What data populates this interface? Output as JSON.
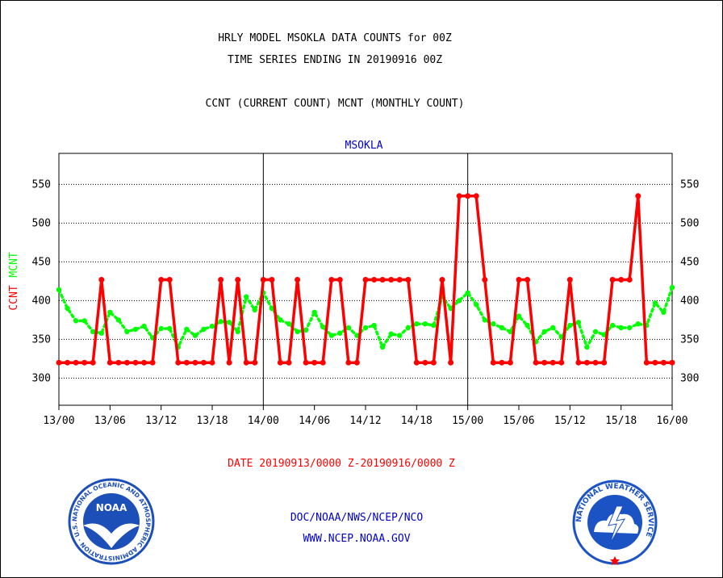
{
  "header": {
    "title_line1": "HRLY MODEL MSOKLA DATA COUNTS for 00Z",
    "title_line2": "TIME SERIES ENDING IN 20190916 00Z",
    "subtitle": "CCNT (CURRENT COUNT) MCNT (MONTHLY COUNT)",
    "panel_label": "MSOKLA"
  },
  "colors": {
    "ccnt": "#ff0000",
    "mcnt": "#00ff00",
    "panel_label": "#0000cc",
    "footer_link": "#0000cc",
    "date_range": "#ff0000",
    "noaa_blue": "#1d4fb8",
    "nws_blue": "#1c53c4"
  },
  "footer": {
    "date_range": "DATE 20190913/0000 Z-20190916/0000 Z",
    "org": "DOC/NOAA/NWS/NCEP/NCO",
    "url": "WWW.NCEP.NOAA.GOV"
  },
  "logos": {
    "noaa_text": "NOAA",
    "noaa_ring": "NATIONAL OCEANIC AND ATMOSPHERIC ADMINISTRATION · U.S. DEPARTMENT OF COMMERCE ·",
    "nws_ring": "NATIONAL WEATHER SERVICE"
  },
  "chart_data": {
    "type": "line",
    "y_axis_left_label_ccnt": "CCNT",
    "y_axis_left_label_mcnt": "MCNT",
    "ylim": [
      265,
      590
    ],
    "yticks": [
      300,
      350,
      400,
      450,
      500,
      550
    ],
    "xlim": [
      0,
      72
    ],
    "xticks": [
      {
        "x": 0,
        "label": "13/00"
      },
      {
        "x": 6,
        "label": "13/06"
      },
      {
        "x": 12,
        "label": "13/12"
      },
      {
        "x": 18,
        "label": "13/18"
      },
      {
        "x": 24,
        "label": "14/00"
      },
      {
        "x": 30,
        "label": "14/06"
      },
      {
        "x": 36,
        "label": "14/12"
      },
      {
        "x": 42,
        "label": "14/18"
      },
      {
        "x": 48,
        "label": "15/00"
      },
      {
        "x": 54,
        "label": "15/06"
      },
      {
        "x": 60,
        "label": "15/12"
      },
      {
        "x": 66,
        "label": "15/18"
      },
      {
        "x": 72,
        "label": "16/00"
      }
    ],
    "day_boundaries": [
      24,
      48
    ],
    "grid": true,
    "series": [
      {
        "name": "CCNT",
        "values": [
          320,
          320,
          320,
          320,
          320,
          427,
          320,
          320,
          320,
          320,
          320,
          320,
          427,
          427,
          320,
          320,
          320,
          320,
          320,
          427,
          320,
          427,
          320,
          320,
          427,
          427,
          320,
          320,
          427,
          320,
          320,
          320,
          427,
          427,
          320,
          320,
          427,
          427,
          427,
          427,
          427,
          427,
          320,
          320,
          320,
          427,
          320,
          535,
          535,
          535,
          427,
          320,
          320,
          320,
          427,
          427,
          320,
          320,
          320,
          320,
          427,
          320,
          320,
          320,
          320,
          427,
          427,
          427,
          535,
          320,
          320,
          320,
          320
        ]
      },
      {
        "name": "MCNT",
        "values": [
          414,
          390,
          374,
          374,
          360,
          358,
          385,
          375,
          360,
          363,
          367,
          352,
          364,
          364,
          340,
          363,
          355,
          363,
          367,
          373,
          372,
          360,
          405,
          388,
          410,
          390,
          375,
          370,
          360,
          362,
          385,
          366,
          355,
          358,
          365,
          355,
          365,
          368,
          340,
          357,
          355,
          365,
          370,
          370,
          368,
          405,
          390,
          400,
          410,
          395,
          375,
          370,
          365,
          360,
          380,
          368,
          347,
          360,
          365,
          353,
          368,
          372,
          340,
          360,
          356,
          368,
          365,
          365,
          370,
          368,
          397,
          385,
          417
        ]
      }
    ]
  }
}
